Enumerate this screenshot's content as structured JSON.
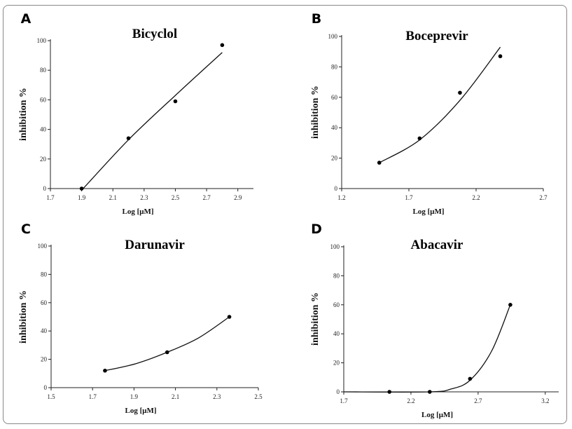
{
  "chart_data": [
    {
      "panel": "A",
      "type": "scatter",
      "title": "Bicyclol",
      "xlabel": "Log [μM]",
      "ylabel": "inhibition %",
      "xlim": [
        1.7,
        3.0
      ],
      "ylim": [
        0,
        100
      ],
      "xticks": [
        "1.7",
        "1.9",
        "2.1",
        "2.3",
        "2.5",
        "2.7",
        "2.9"
      ],
      "yticks": [
        "0",
        "20",
        "40",
        "60",
        "80",
        "100"
      ],
      "points": [
        {
          "x": 1.9,
          "y": 0
        },
        {
          "x": 2.2,
          "y": 34
        },
        {
          "x": 2.5,
          "y": 59
        },
        {
          "x": 2.8,
          "y": 97
        }
      ],
      "fit": [
        {
          "x": 1.91,
          "y": 0
        },
        {
          "x": 2.2,
          "y": 33
        },
        {
          "x": 2.5,
          "y": 63
        },
        {
          "x": 2.8,
          "y": 92
        }
      ]
    },
    {
      "panel": "B",
      "type": "scatter",
      "title": "Boceprevir",
      "xlabel": "Log [μM]",
      "ylabel": "inhibition %",
      "xlim": [
        1.2,
        2.7
      ],
      "ylim": [
        0,
        100
      ],
      "xticks": [
        "1.2",
        "1.7",
        "2.2",
        "2.7"
      ],
      "yticks": [
        "0",
        "20",
        "40",
        "60",
        "80",
        "100"
      ],
      "points": [
        {
          "x": 1.48,
          "y": 17
        },
        {
          "x": 1.78,
          "y": 33
        },
        {
          "x": 2.08,
          "y": 63
        },
        {
          "x": 2.38,
          "y": 87
        }
      ],
      "fit": [
        {
          "x": 1.48,
          "y": 17
        },
        {
          "x": 1.78,
          "y": 32
        },
        {
          "x": 2.08,
          "y": 58
        },
        {
          "x": 2.38,
          "y": 93
        }
      ]
    },
    {
      "panel": "C",
      "type": "scatter",
      "title": "Darunavir",
      "xlabel": "Log [μM]",
      "ylabel": "inhibition %",
      "xlim": [
        1.5,
        2.5
      ],
      "ylim": [
        0,
        100
      ],
      "xticks": [
        "1.5",
        "1.7",
        "1.9",
        "2.1",
        "2.3",
        "2.5"
      ],
      "yticks": [
        "0",
        "20",
        "40",
        "60",
        "80",
        "100"
      ],
      "points": [
        {
          "x": 1.76,
          "y": 12
        },
        {
          "x": 2.06,
          "y": 25
        },
        {
          "x": 2.36,
          "y": 50
        }
      ],
      "fit": [
        {
          "x": 1.76,
          "y": 12
        },
        {
          "x": 1.91,
          "y": 17
        },
        {
          "x": 2.06,
          "y": 25
        },
        {
          "x": 2.21,
          "y": 35
        },
        {
          "x": 2.36,
          "y": 50
        }
      ]
    },
    {
      "panel": "D",
      "type": "scatter",
      "title": "Abacavir",
      "xlabel": "Log [μM]",
      "ylabel": "inhibition %",
      "xlim": [
        1.7,
        3.3
      ],
      "ylim": [
        0,
        100
      ],
      "xticks": [
        "1.7",
        "2.2",
        "2.7",
        "3.2"
      ],
      "yticks": [
        "0",
        "20",
        "40",
        "60",
        "80",
        "100"
      ],
      "points": [
        {
          "x": 2.04,
          "y": 0
        },
        {
          "x": 2.34,
          "y": 0
        },
        {
          "x": 2.64,
          "y": 9
        },
        {
          "x": 2.94,
          "y": 60
        }
      ],
      "fit": [
        {
          "x": 1.7,
          "y": 0
        },
        {
          "x": 2.34,
          "y": 0
        },
        {
          "x": 2.5,
          "y": 2
        },
        {
          "x": 2.64,
          "y": 8
        },
        {
          "x": 2.8,
          "y": 28
        },
        {
          "x": 2.94,
          "y": 60
        }
      ]
    }
  ]
}
